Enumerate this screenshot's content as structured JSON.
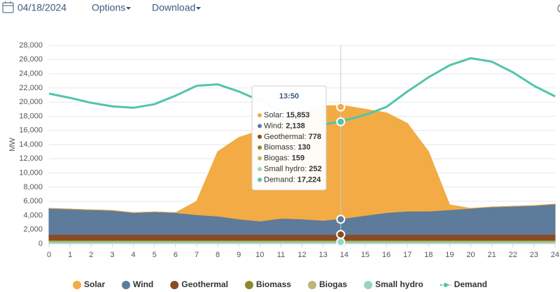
{
  "toolbar": {
    "date": "04/18/2024",
    "options": "Options",
    "download": "Download"
  },
  "chart_data": {
    "type": "area",
    "y_label": "MW",
    "x": [
      0,
      1,
      2,
      3,
      4,
      5,
      6,
      7,
      8,
      9,
      10,
      11,
      12,
      13,
      14,
      15,
      16,
      17,
      18,
      19,
      20,
      21,
      22,
      23,
      24
    ],
    "xlim": [
      0,
      24
    ],
    "xticks": [
      0,
      1,
      2,
      3,
      4,
      5,
      6,
      7,
      8,
      9,
      10,
      11,
      12,
      13,
      14,
      15,
      16,
      17,
      18,
      19,
      20,
      21,
      22,
      23,
      24
    ],
    "ylim": [
      0,
      28000
    ],
    "yticks": [
      0,
      {
        "value": 2000,
        "label": "2,000"
      },
      {
        "value": 4000,
        "label": "4,000"
      },
      {
        "value": 6000,
        "label": "6,000"
      },
      {
        "value": 8000,
        "label": "8,000"
      },
      {
        "value": 10000,
        "label": "10,000"
      },
      {
        "value": 12000,
        "label": "12,000"
      },
      {
        "value": 14000,
        "label": "14,000"
      },
      {
        "value": 16000,
        "label": "16,000"
      },
      {
        "value": 18000,
        "label": "18,000"
      },
      {
        "value": 20000,
        "label": "20,000"
      },
      {
        "value": 22000,
        "label": "22,000"
      },
      {
        "value": 24000,
        "label": "24,000"
      },
      {
        "value": 26000,
        "label": "26,000"
      },
      {
        "value": 28000,
        "label": "28,000"
      }
    ],
    "grid": true,
    "legend": "bottom",
    "series": [
      {
        "name": "Solar",
        "color": "#f2ab45",
        "values": [
          0,
          0,
          0,
          0,
          0,
          0,
          0,
          1900,
          9100,
          11500,
          12800,
          13900,
          15000,
          16200,
          15900,
          15000,
          14100,
          12400,
          8400,
          700,
          0,
          0,
          0,
          0,
          0
        ]
      },
      {
        "name": "Wind",
        "color": "#5d7b9b",
        "values": [
          3680,
          3580,
          3480,
          3380,
          3080,
          3180,
          3080,
          2780,
          2580,
          2180,
          1880,
          2280,
          2180,
          1980,
          2280,
          2680,
          3080,
          3280,
          3280,
          3480,
          3680,
          3880,
          3980,
          4080,
          4280
        ]
      },
      {
        "name": "Geothermal",
        "color": "#8a4b22",
        "values": [
          780,
          780,
          780,
          780,
          780,
          780,
          780,
          780,
          780,
          780,
          780,
          780,
          780,
          780,
          780,
          780,
          780,
          780,
          780,
          780,
          780,
          780,
          780,
          780,
          780
        ]
      },
      {
        "name": "Biomass",
        "color": "#8c8a2e",
        "values": [
          130,
          130,
          130,
          130,
          130,
          130,
          130,
          130,
          130,
          130,
          130,
          130,
          130,
          130,
          130,
          130,
          130,
          130,
          130,
          130,
          130,
          130,
          130,
          130,
          130
        ]
      },
      {
        "name": "Biogas",
        "color": "#b9b774",
        "values": [
          159,
          159,
          159,
          159,
          159,
          159,
          159,
          159,
          159,
          159,
          159,
          159,
          159,
          159,
          159,
          159,
          159,
          159,
          159,
          159,
          159,
          159,
          159,
          159,
          159
        ]
      },
      {
        "name": "Small hydro",
        "color": "#93d6c8",
        "values": [
          252,
          252,
          252,
          252,
          252,
          252,
          252,
          252,
          252,
          252,
          252,
          252,
          252,
          252,
          252,
          252,
          252,
          252,
          252,
          252,
          252,
          252,
          252,
          252,
          252
        ]
      },
      {
        "name": "Demand",
        "type": "line",
        "color": "#52c4aa",
        "values": [
          21200,
          20600,
          19900,
          19400,
          19200,
          19700,
          20900,
          22300,
          22500,
          21500,
          20200,
          18700,
          17400,
          16800,
          17400,
          18200,
          19300,
          21500,
          23500,
          25200,
          26200,
          25700,
          24200,
          22300,
          20800
        ]
      }
    ],
    "tooltip": {
      "time": "13:50",
      "items": [
        {
          "label": "Solar:",
          "value": 15853,
          "value_label": "15,853"
        },
        {
          "label": "Wind:",
          "value": 2138,
          "value_label": "2,138"
        },
        {
          "label": "Geothermal:",
          "value": 778,
          "value_label": "778"
        },
        {
          "label": "Biomass:",
          "value": 130,
          "value_label": "130"
        },
        {
          "label": "Biogas:",
          "value": 159,
          "value_label": "159"
        },
        {
          "label": "Small hydro:",
          "value": 252,
          "value_label": "252"
        },
        {
          "label": "Demand:",
          "value": 17224,
          "value_label": "17,224"
        }
      ]
    }
  }
}
